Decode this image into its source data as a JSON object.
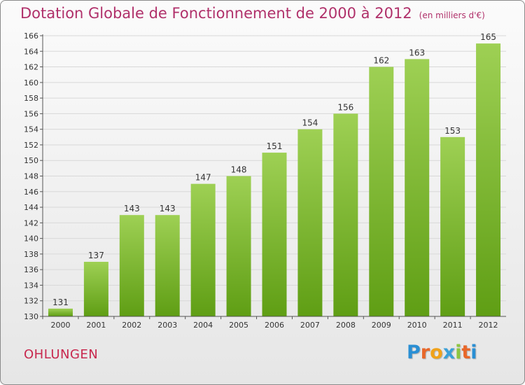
{
  "title": "Dotation Globale de Fonctionnement de 2000 à 2012",
  "unit_note": "(en milliers d'€)",
  "commune": "OHLUNGEN",
  "logo": {
    "text": "Proxiti",
    "letters": [
      "P",
      "r",
      "o",
      "x",
      "i",
      "t",
      "i"
    ],
    "colors": [
      "#2a8fd4",
      "#e8672a",
      "#f0a21a",
      "#3aa0d8",
      "#8cc63f",
      "#e8672a",
      "#2a8fd4"
    ]
  },
  "colors": {
    "bar_top": "#9ed054",
    "bar_bottom": "#5f9e14",
    "title": "#b0306a",
    "grid": "#d8d8d8"
  },
  "chart_data": {
    "type": "bar",
    "categories": [
      "2000",
      "2001",
      "2002",
      "2003",
      "2004",
      "2005",
      "2006",
      "2007",
      "2008",
      "2009",
      "2010",
      "2011",
      "2012"
    ],
    "values": [
      131,
      137,
      143,
      143,
      147,
      148,
      151,
      154,
      156,
      162,
      163,
      153,
      165
    ],
    "ylim": [
      130,
      166
    ],
    "yticks": [
      130,
      132,
      134,
      136,
      138,
      140,
      142,
      144,
      146,
      148,
      150,
      152,
      154,
      156,
      158,
      160,
      162,
      164,
      166
    ],
    "grid": true
  }
}
